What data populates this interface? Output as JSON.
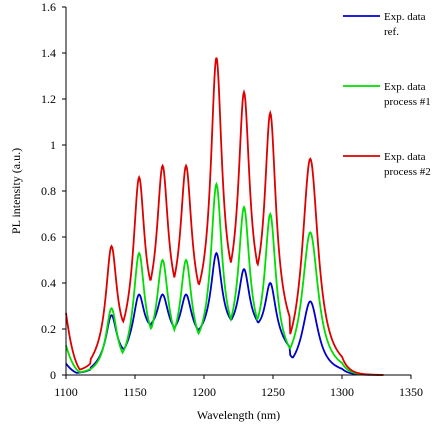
{
  "chart_data": {
    "type": "line",
    "xlabel": "Wavelength (nm)",
    "ylabel": "PL intensity (a.u.)",
    "xlim": [
      1100,
      1350
    ],
    "ylim": [
      0,
      1.6
    ],
    "xticks": [
      "1100",
      "1150",
      "1200",
      "1250",
      "1300",
      "1350"
    ],
    "yticks": [
      "0",
      "0.2",
      "0.4",
      "0.6",
      "0.8",
      "1",
      "1.2",
      "1.4",
      "1.6"
    ],
    "legend_position": "top-right",
    "series": [
      {
        "name_lines": [
          "Exp. data",
          "ref."
        ],
        "color": "#0000cc",
        "peaks": [
          [
            1133,
            0.26
          ],
          [
            1153,
            0.35
          ],
          [
            1170,
            0.35
          ],
          [
            1187,
            0.35
          ],
          [
            1209,
            0.53
          ],
          [
            1229,
            0.46
          ],
          [
            1248,
            0.4
          ],
          [
            1277,
            0.32
          ]
        ],
        "valleys": [
          [
            1118,
            0.01
          ],
          [
            1143,
            0.07
          ],
          [
            1162,
            0.18
          ],
          [
            1178,
            0.16
          ],
          [
            1197,
            0.15
          ],
          [
            1219,
            0.18
          ],
          [
            1238,
            0.18
          ],
          [
            1262,
            0.09
          ]
        ]
      },
      {
        "name_lines": [
          "Exp. data",
          "process #1"
        ],
        "color": "#00dd00",
        "peaks": [
          [
            1133,
            0.29
          ],
          [
            1153,
            0.53
          ],
          [
            1170,
            0.5
          ],
          [
            1187,
            0.5
          ],
          [
            1209,
            0.83
          ],
          [
            1229,
            0.73
          ],
          [
            1248,
            0.7
          ],
          [
            1277,
            0.62
          ]
        ],
        "valleys": [
          [
            1118,
            0.0
          ],
          [
            1143,
            0.03
          ],
          [
            1162,
            0.1
          ],
          [
            1178,
            0.1
          ],
          [
            1197,
            0.09
          ],
          [
            1219,
            0.12
          ],
          [
            1238,
            0.12
          ],
          [
            1262,
            0.05
          ]
        ]
      },
      {
        "name_lines": [
          "Exp. data",
          "process #2"
        ],
        "color": "#dd0000",
        "peaks": [
          [
            1133,
            0.56
          ],
          [
            1153,
            0.86
          ],
          [
            1170,
            0.91
          ],
          [
            1187,
            0.91
          ],
          [
            1209,
            1.38
          ],
          [
            1229,
            1.23
          ],
          [
            1248,
            1.14
          ],
          [
            1277,
            0.94
          ]
        ],
        "valleys": [
          [
            1118,
            0.02
          ],
          [
            1143,
            0.13
          ],
          [
            1162,
            0.26
          ],
          [
            1178,
            0.27
          ],
          [
            1197,
            0.25
          ],
          [
            1219,
            0.3
          ],
          [
            1238,
            0.3
          ],
          [
            1262,
            0.15
          ]
        ]
      }
    ]
  }
}
